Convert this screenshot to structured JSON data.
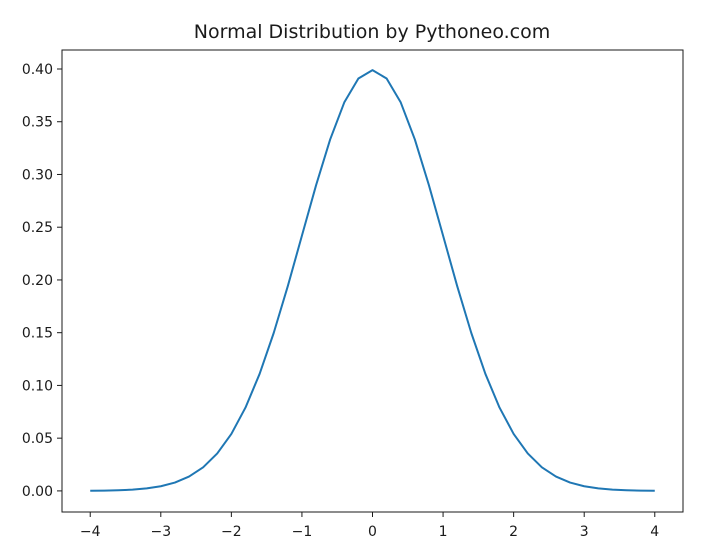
{
  "chart_data": {
    "type": "line",
    "title": "Normal Distribution by Pythoneo.com",
    "xlabel": "",
    "ylabel": "",
    "xlim": [
      -4.4,
      4.4
    ],
    "ylim": [
      -0.02,
      0.418
    ],
    "grid": false,
    "legend": "none",
    "x_ticks": [
      -4,
      -3,
      -2,
      -1,
      0,
      1,
      2,
      3,
      4
    ],
    "x_tick_labels": [
      "−4",
      "−3",
      "−2",
      "−1",
      "0",
      "1",
      "2",
      "3",
      "4"
    ],
    "y_ticks": [
      0.0,
      0.05,
      0.1,
      0.15,
      0.2,
      0.25,
      0.3,
      0.35,
      0.4
    ],
    "y_tick_labels": [
      "0.00",
      "0.05",
      "0.10",
      "0.15",
      "0.20",
      "0.25",
      "0.30",
      "0.35",
      "0.40"
    ],
    "series": [
      {
        "color": "#1f77b4",
        "x": [
          -4,
          -3.8,
          -3.6,
          -3.4,
          -3.2,
          -3,
          -2.8,
          -2.6,
          -2.4,
          -2.2,
          -2,
          -1.8,
          -1.6,
          -1.4,
          -1.2,
          -1,
          -0.8,
          -0.6,
          -0.4,
          -0.2,
          0,
          0.2,
          0.4,
          0.6,
          0.8,
          1,
          1.2,
          1.4,
          1.6,
          1.8,
          2,
          2.2,
          2.4,
          2.6,
          2.8,
          3,
          3.2,
          3.4,
          3.6,
          3.8,
          4
        ],
        "y": [
          0.0001,
          0.0003,
          0.0006,
          0.0012,
          0.0024,
          0.0044,
          0.0079,
          0.0136,
          0.0224,
          0.0355,
          0.054,
          0.079,
          0.1109,
          0.1497,
          0.1942,
          0.242,
          0.2897,
          0.3332,
          0.3683,
          0.391,
          0.3989,
          0.391,
          0.3683,
          0.3332,
          0.2897,
          0.242,
          0.1942,
          0.1497,
          0.1109,
          0.079,
          0.054,
          0.0355,
          0.0224,
          0.0136,
          0.0079,
          0.0044,
          0.0024,
          0.0012,
          0.0006,
          0.0003,
          0.0001
        ]
      }
    ]
  }
}
